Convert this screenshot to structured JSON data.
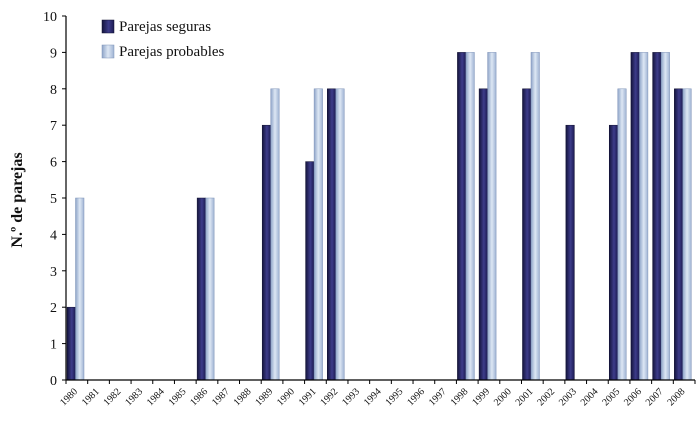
{
  "chart_data": {
    "type": "bar",
    "ylabel": "N.º de parejas",
    "xlabel": "",
    "ylim": [
      0,
      10
    ],
    "yticks": [
      0,
      1,
      2,
      3,
      4,
      5,
      6,
      7,
      8,
      9,
      10
    ],
    "legend_position": "top-left",
    "grid": false,
    "categories": [
      "1980",
      "1981",
      "1982",
      "1983",
      "1984",
      "1985",
      "1986",
      "1987",
      "1988",
      "1989",
      "1990",
      "1991",
      "1992",
      "1993",
      "1994",
      "1995",
      "1996",
      "1997",
      "1998",
      "1999",
      "2000",
      "2001",
      "2002",
      "2003",
      "2004",
      "2005",
      "2006",
      "2007",
      "2008"
    ],
    "series": [
      {
        "name": "Parejas seguras",
        "color": "#23225e",
        "values": [
          2,
          0,
          0,
          0,
          0,
          0,
          5,
          0,
          0,
          7,
          0,
          6,
          8,
          0,
          0,
          0,
          0,
          0,
          9,
          8,
          0,
          8,
          0,
          7,
          0,
          7,
          9,
          9,
          8
        ]
      },
      {
        "name": "Parejas probables",
        "color": "#b4c6e0",
        "values": [
          5,
          0,
          0,
          0,
          0,
          0,
          5,
          0,
          0,
          8,
          0,
          8,
          8,
          0,
          0,
          0,
          0,
          0,
          9,
          9,
          0,
          9,
          0,
          0,
          0,
          8,
          9,
          9,
          8
        ]
      }
    ]
  }
}
